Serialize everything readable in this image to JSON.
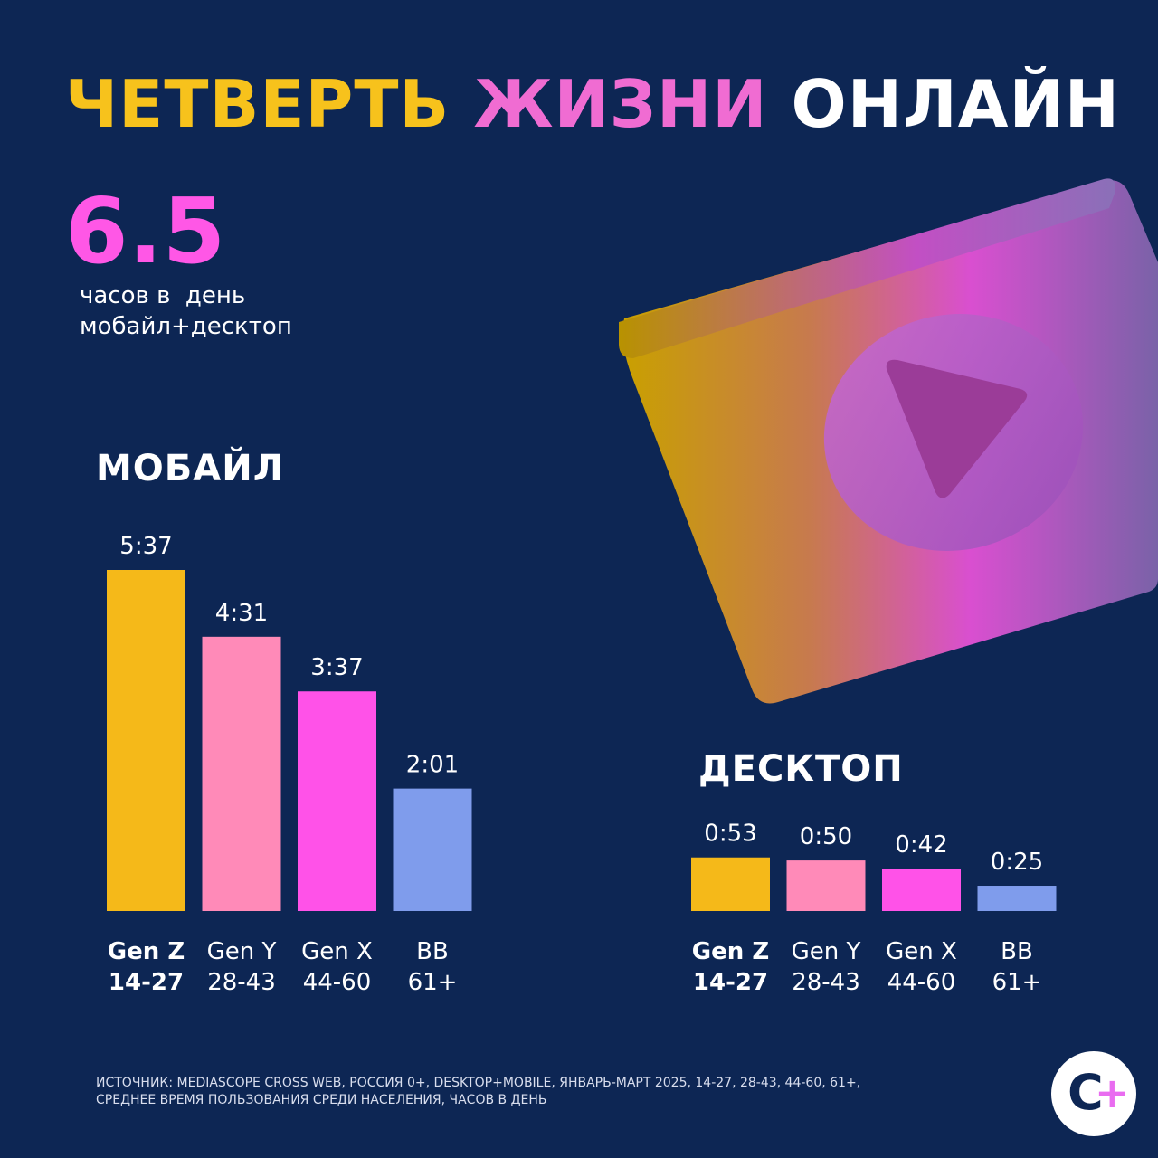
{
  "header": {
    "title_part1": "ЧЕТВЕРТЬ",
    "title_part2": "ЖИЗНИ",
    "title_part3": "ОНЛАЙН"
  },
  "summary": {
    "value": "6.5",
    "line1": "часов в  день",
    "line2": "мобайл+десктоп"
  },
  "source": {
    "line1": "ИСТОЧНИК: MEDIASCOPE CROSS WEB, РОССИЯ 0+, DESKTOP+MOBILE, ЯНВАРЬ-МАРТ 2025, 14-27, 28-43, 44-60, 61+,",
    "line2": "СРЕДНЕЕ ВРЕМЯ ПОЛЬЗОВАНИЯ СРЕДИ НАСЕЛЕНИЯ, ЧАСОВ В ДЕНЬ"
  },
  "logo": {
    "c": "C",
    "plus": "+"
  },
  "colors": {
    "background": "#0d2654",
    "gen_z": "#f5b919",
    "gen_y": "#ff8ab8",
    "gen_x": "#ff52e8",
    "bb": "#7f9cec"
  },
  "chart_data": [
    {
      "type": "bar",
      "title": "МОБАЙЛ",
      "categories": [
        {
          "name": "Gen Z",
          "range": "14-27",
          "bold": true
        },
        {
          "name": "Gen Y",
          "range": "28-43",
          "bold": false
        },
        {
          "name": "Gen X",
          "range": "44-60",
          "bold": false
        },
        {
          "name": "BB",
          "range": "61+",
          "bold": false
        }
      ],
      "values": [
        5.617,
        4.517,
        3.617,
        2.017
      ],
      "labels": [
        "5:37",
        "4:31",
        "3:37",
        "2:01"
      ],
      "unit": "hours"
    },
    {
      "type": "bar",
      "title": "ДЕСКТОП",
      "categories": [
        {
          "name": "Gen Z",
          "range": "14-27",
          "bold": true
        },
        {
          "name": "Gen Y",
          "range": "28-43",
          "bold": false
        },
        {
          "name": "Gen X",
          "range": "44-60",
          "bold": false
        },
        {
          "name": "BB",
          "range": "61+",
          "bold": false
        }
      ],
      "values": [
        0.883,
        0.833,
        0.7,
        0.417
      ],
      "labels": [
        "0:53",
        "0:50",
        "0:42",
        "0:25"
      ],
      "unit": "hours"
    }
  ]
}
